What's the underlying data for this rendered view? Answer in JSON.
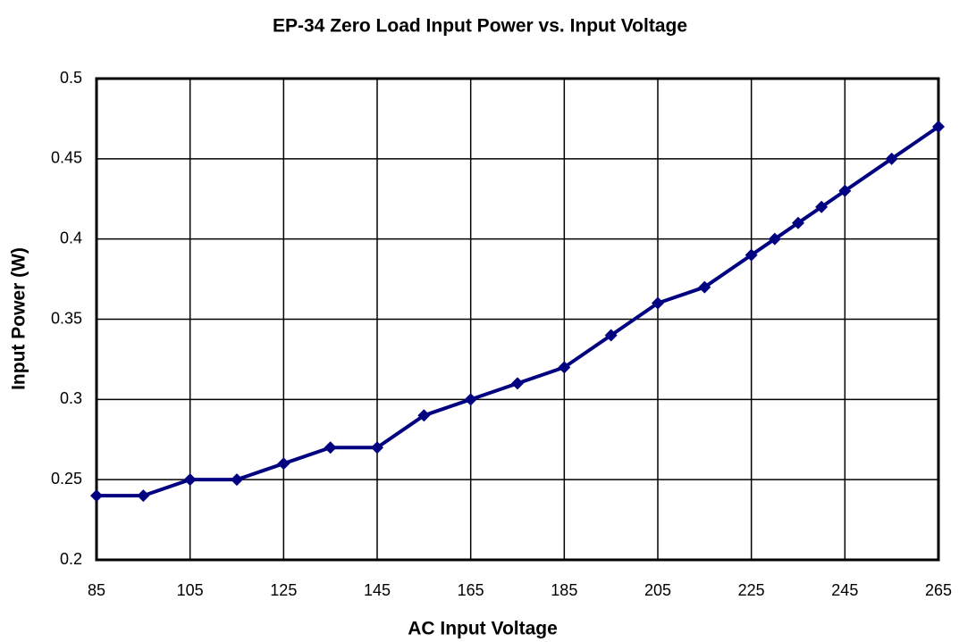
{
  "chart_data": {
    "type": "line",
    "title": "EP-34 Zero Load Input Power vs. Input Voltage",
    "x_label": "AC Input Voltage",
    "y_label": "Input Power (W)",
    "x": [
      85,
      95,
      105,
      115,
      125,
      135,
      145,
      155,
      165,
      175,
      185,
      195,
      205,
      215,
      225,
      230,
      235,
      240,
      245,
      255,
      265
    ],
    "series": [
      {
        "color": "#000080",
        "values": [
          0.24,
          0.24,
          0.25,
          0.25,
          0.26,
          0.27,
          0.27,
          0.29,
          0.3,
          0.31,
          0.32,
          0.34,
          0.36,
          0.37,
          0.39,
          0.4,
          0.41,
          0.42,
          0.43,
          0.45,
          0.47
        ]
      }
    ],
    "xlim": [
      85,
      265
    ],
    "xticks": [
      85,
      105,
      125,
      145,
      165,
      185,
      205,
      225,
      245,
      265
    ],
    "ylim": [
      0.2,
      0.5
    ],
    "yticks": [
      0.2,
      0.25,
      0.3,
      0.35,
      0.4,
      0.45,
      0.5
    ],
    "grid": true
  }
}
